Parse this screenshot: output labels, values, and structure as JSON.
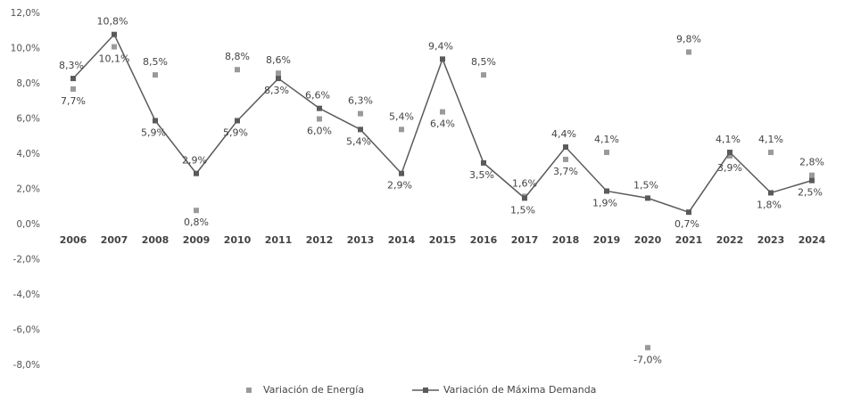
{
  "chart_data": {
    "type": "line",
    "categories": [
      "2006",
      "2007",
      "2008",
      "2009",
      "2010",
      "2011",
      "2012",
      "2013",
      "2014",
      "2015",
      "2016",
      "2017",
      "2018",
      "2019",
      "2020",
      "2021",
      "2022",
      "2023",
      "2024"
    ],
    "series": [
      {
        "name": "Variación de Energía",
        "color": "#9a9a9a",
        "markers_only": true,
        "values": [
          7.7,
          10.1,
          8.5,
          0.8,
          8.8,
          8.6,
          6.0,
          6.3,
          5.4,
          6.4,
          8.5,
          1.6,
          3.7,
          4.1,
          -7.0,
          9.8,
          3.9,
          4.1,
          2.8
        ],
        "value_labels": [
          "7,7%",
          "10,1%",
          "8,5%",
          "0,8%",
          "8,8%",
          "8,6%",
          "6,0%",
          "6,3%",
          "5,4%",
          "6,4%",
          "8,5%",
          "1,6%",
          "3,7%",
          "4,1%",
          "-7,0%",
          "9,8%",
          "3,9%",
          "4,1%",
          "2,8%"
        ]
      },
      {
        "name": "Variación de Máxima Demanda",
        "color": "#5a5a5a",
        "markers_only": false,
        "values": [
          8.3,
          10.8,
          5.9,
          2.9,
          5.9,
          8.3,
          6.6,
          5.4,
          2.9,
          9.4,
          3.5,
          1.5,
          4.4,
          1.9,
          1.5,
          0.7,
          4.1,
          1.8,
          2.5
        ],
        "value_labels": [
          "8,3%",
          "10,8%",
          "5,9%",
          "2,9%",
          "5,9%",
          "8,3%",
          "6,6%",
          "5,4%",
          "2,9%",
          "9,4%",
          "3,5%",
          "1,5%",
          "4,4%",
          "1,9%",
          "1,5%",
          "0,7%",
          "4,1%",
          "1,8%",
          "2,5%"
        ]
      }
    ],
    "ylim": [
      -8,
      12
    ],
    "yticks": [
      {
        "value": -8,
        "label": "-8,0%"
      },
      {
        "value": -6,
        "label": "-6,0%"
      },
      {
        "value": -4,
        "label": "-4,0%"
      },
      {
        "value": -2,
        "label": "-2,0%"
      },
      {
        "value": 0,
        "label": "0,0%"
      },
      {
        "value": 2,
        "label": "2,0%"
      },
      {
        "value": 4,
        "label": "4,0%"
      },
      {
        "value": 6,
        "label": "6,0%"
      },
      {
        "value": 8,
        "label": "8,0%"
      },
      {
        "value": 10,
        "label": "10,0%"
      },
      {
        "value": 12,
        "label": "12,0%"
      }
    ],
    "legend": "bottom"
  }
}
